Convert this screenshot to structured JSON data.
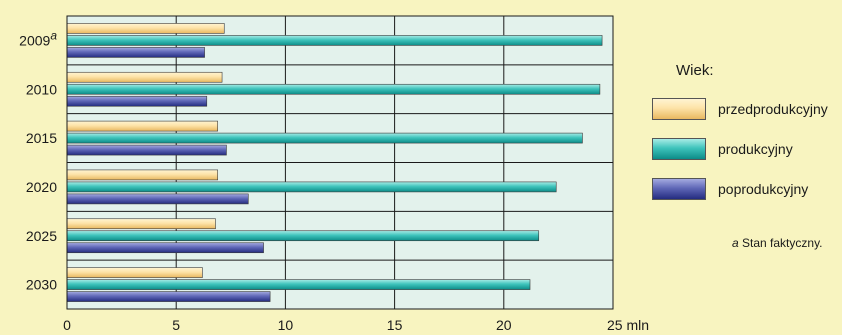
{
  "chart_data": {
    "type": "bar",
    "orientation": "horizontal",
    "categories": [
      "2009",
      "2010",
      "2015",
      "2020",
      "2025",
      "2030"
    ],
    "category_superscripts": [
      "a",
      "",
      "",
      "",
      "",
      ""
    ],
    "series": [
      {
        "name": "przedprodukcyjny",
        "values": [
          7.2,
          7.1,
          6.9,
          6.9,
          6.8,
          6.2
        ]
      },
      {
        "name": "produkcyjny",
        "values": [
          24.5,
          24.4,
          23.6,
          22.4,
          21.6,
          21.2
        ]
      },
      {
        "name": "poprodukcyjny",
        "values": [
          6.3,
          6.4,
          7.3,
          8.3,
          9.0,
          9.3
        ]
      }
    ],
    "x_ticks": [
      "0",
      "5",
      "10",
      "15",
      "20",
      "25 mln"
    ],
    "xlim": [
      0,
      25
    ],
    "grid": true,
    "legend_title": "Wiek:",
    "legend_position": "right",
    "footnote_mark": "a",
    "footnote_text": "Stan faktyczny."
  },
  "colors": {
    "background": "#f8f4c0",
    "plot_background": "#e3f2ec",
    "grid": "#1a1a1a",
    "przedprodukcyjny": "#fde3a8",
    "produkcyjny": "#3fc4bc",
    "poprodukcyjny": "#6068b8"
  }
}
